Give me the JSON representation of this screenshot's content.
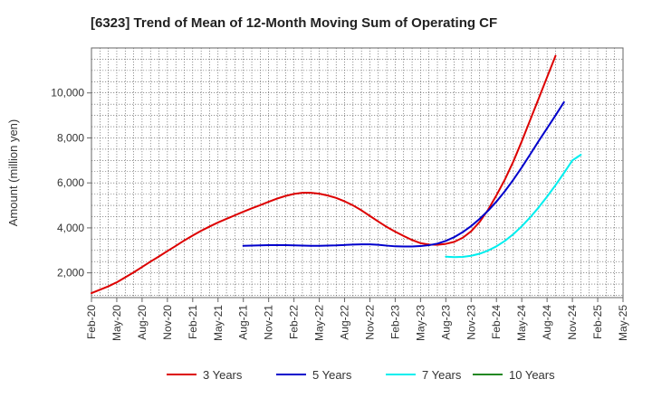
{
  "chart_data": {
    "type": "line",
    "title": "[6323]  Trend of Mean of 12-Month Moving Sum of Operating CF",
    "xlabel": "",
    "ylabel": "Amount (million yen)",
    "ylim": [
      900,
      12000
    ],
    "y_ticks": [
      2000,
      4000,
      6000,
      8000,
      10000
    ],
    "y_tick_labels": [
      "2,000",
      "4,000",
      "6,000",
      "8,000",
      "10,000"
    ],
    "x_tick_labels": [
      "Feb-20",
      "May-20",
      "Aug-20",
      "Nov-20",
      "Feb-21",
      "May-21",
      "Aug-21",
      "Nov-21",
      "Feb-22",
      "May-22",
      "Aug-22",
      "Nov-22",
      "Feb-23",
      "May-23",
      "Aug-23",
      "Nov-23",
      "Feb-24",
      "May-24",
      "Aug-24",
      "Nov-24",
      "Feb-25",
      "May-25"
    ],
    "x_start_month": "2020-02",
    "x_end_index": 63,
    "grid": true,
    "legend_position": "bottom",
    "series": [
      {
        "name": "3 Years",
        "color": "#dd0000",
        "start_index": 0,
        "values": [
          1100,
          1250,
          1400,
          1580,
          1800,
          2020,
          2260,
          2500,
          2730,
          2970,
          3200,
          3440,
          3660,
          3870,
          4060,
          4240,
          4400,
          4560,
          4720,
          4870,
          5010,
          5160,
          5300,
          5420,
          5510,
          5560,
          5560,
          5520,
          5440,
          5330,
          5180,
          5000,
          4780,
          4530,
          4280,
          4040,
          3830,
          3640,
          3460,
          3320,
          3260,
          3250,
          3290,
          3380,
          3560,
          3850,
          4260,
          4800,
          5450,
          6150,
          6950,
          7850,
          8800,
          9750,
          10700,
          11650
        ]
      },
      {
        "name": "5 Years",
        "color": "#0000cc",
        "start_index": 18,
        "values": [
          3200,
          3210,
          3220,
          3230,
          3230,
          3230,
          3220,
          3210,
          3200,
          3200,
          3210,
          3220,
          3240,
          3260,
          3270,
          3270,
          3250,
          3210,
          3180,
          3170,
          3170,
          3190,
          3230,
          3300,
          3420,
          3590,
          3810,
          4080,
          4400,
          4760,
          5170,
          5630,
          6140,
          6690,
          7270,
          7860,
          8430,
          9000,
          9590
        ]
      },
      {
        "name": "7 Years",
        "color": "#00eeee",
        "start_index": 42,
        "values": [
          2720,
          2700,
          2710,
          2760,
          2850,
          2990,
          3180,
          3420,
          3720,
          4070,
          4470,
          4910,
          5390,
          5900,
          6440,
          7000,
          7250
        ]
      },
      {
        "name": "10 Years",
        "color": "#228822",
        "start_index": 0,
        "values": []
      }
    ]
  }
}
